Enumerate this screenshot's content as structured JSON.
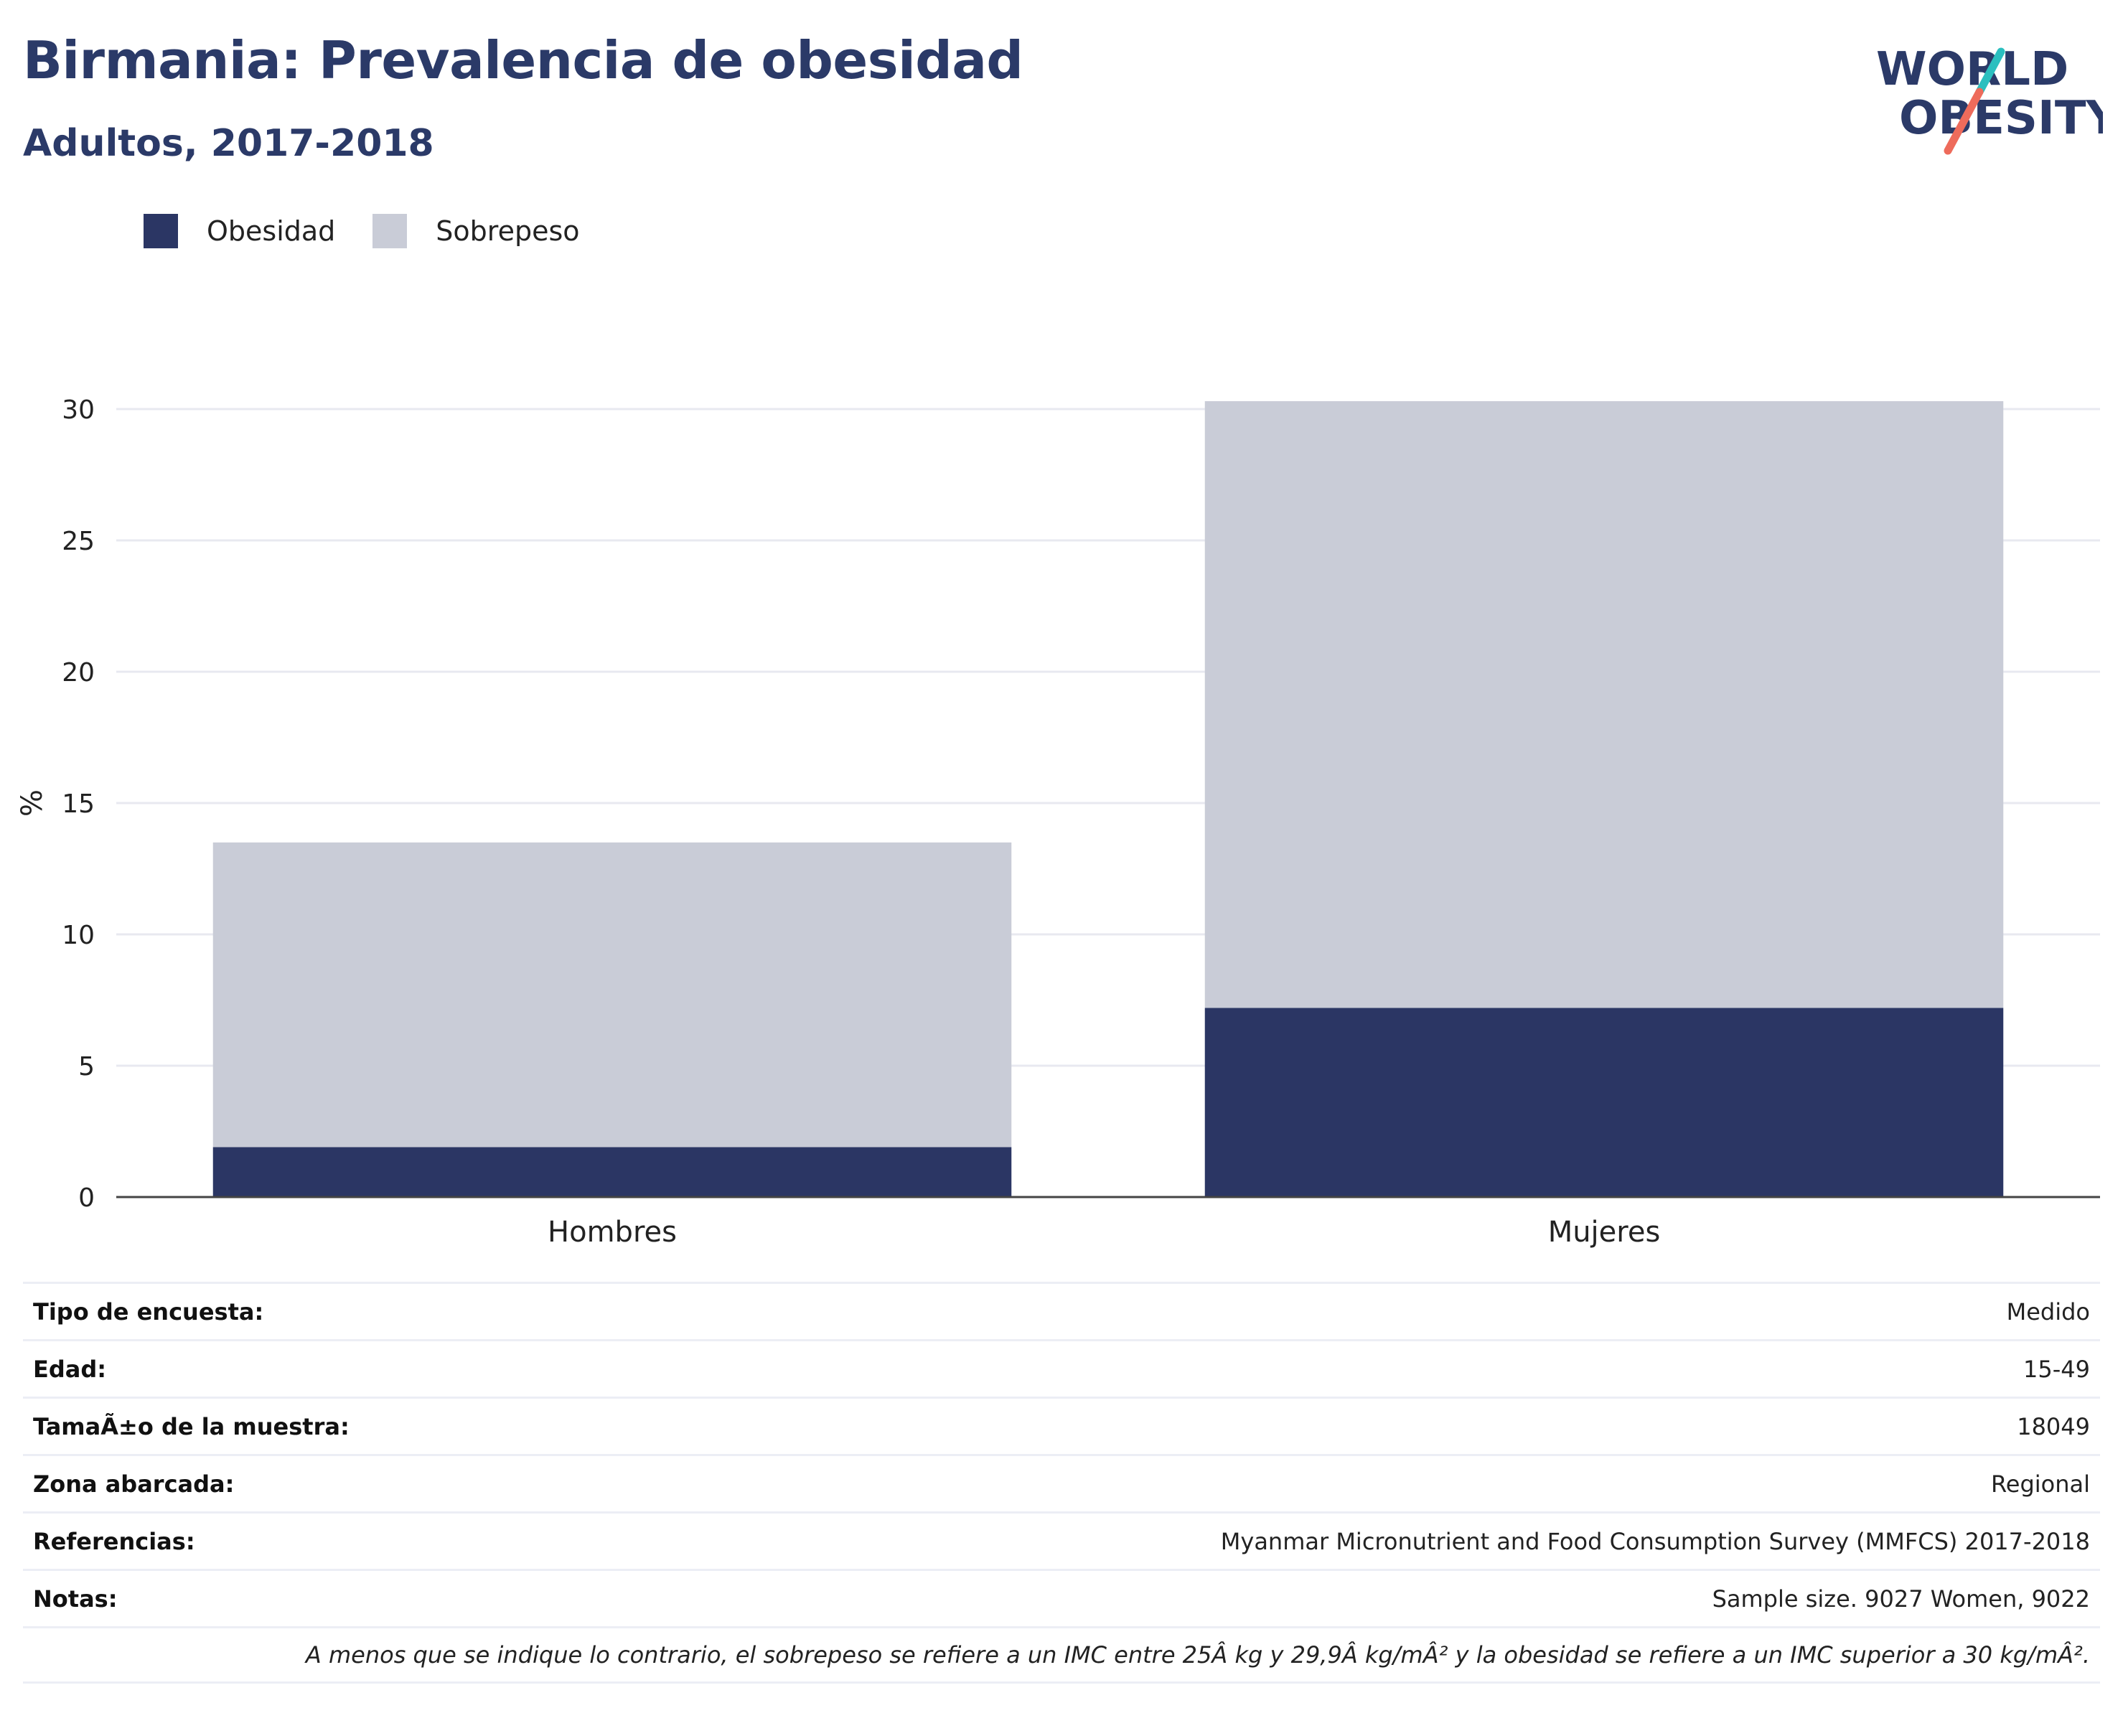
{
  "header": {
    "title": "Birmania: Prevalencia de obesidad",
    "subtitle": "Adultos, 2017-2018"
  },
  "logo": {
    "line1": "WORLD",
    "line2": "OBESITY"
  },
  "colors": {
    "obesidad": "#2b3664",
    "sobrepeso": "#c9ccd7",
    "grid": "#e8e9f0",
    "axis": "#444444",
    "title": "#2b3a68",
    "logo_teal": "#2bbfbf",
    "logo_coral": "#ee6b5b"
  },
  "legend": [
    {
      "label": "Obesidad",
      "color": "#2b3664"
    },
    {
      "label": "Sobrepeso",
      "color": "#c9ccd7"
    }
  ],
  "chart_data": {
    "type": "bar",
    "stacked": true,
    "categories": [
      "Hombres",
      "Mujeres"
    ],
    "series": [
      {
        "name": "Obesidad",
        "values": [
          1.9,
          7.2
        ]
      },
      {
        "name": "Sobrepeso",
        "values": [
          11.6,
          23.1
        ]
      }
    ],
    "ylabel": "%",
    "ylim": [
      0,
      31
    ],
    "yticks": [
      0,
      5,
      10,
      15,
      20,
      25,
      30
    ],
    "grid": true,
    "legend_position": "top-left"
  },
  "details": [
    {
      "key": "Tipo de encuesta:",
      "value": "Medido"
    },
    {
      "key": "Edad:",
      "value": "15-49"
    },
    {
      "key": "TamaÃ±o de la muestra:",
      "value": "18049"
    },
    {
      "key": "Zona abarcada:",
      "value": "Regional"
    },
    {
      "key": "Referencias:",
      "value": "Myanmar Micronutrient and Food Consumption Survey (MMFCS) 2017-2018"
    },
    {
      "key": "Notas:",
      "value": "Sample size. 9027 Women, 9022"
    }
  ],
  "footnote": "A menos que se indique lo contrario, el sobrepeso se refiere a un IMC entre 25Â kg y 29,9Â kg/mÂ² y la obesidad se refiere a un IMC superior a 30 kg/mÂ²."
}
